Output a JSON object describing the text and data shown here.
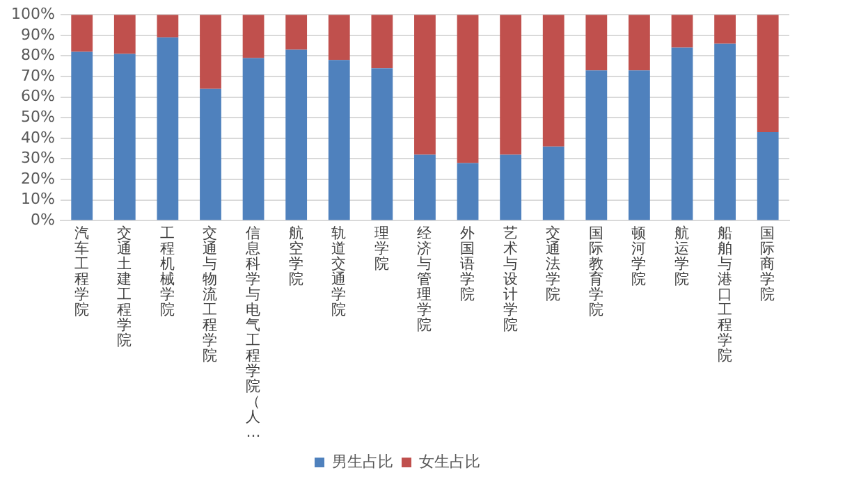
{
  "chart_data": {
    "type": "bar",
    "stacked": true,
    "categories": [
      "汽车工程学院",
      "交通土建工程学院",
      "工程机械学院",
      "交通与物流工程学院",
      "信息科学与电气工程学院（人…",
      "航空学院",
      "轨道交通学院",
      "理学院",
      "经济与管理学院",
      "外国语学院",
      "艺术与设计学院",
      "交通法学院",
      "国际教育学院",
      "顿河学院",
      "航运学院",
      "船舶与港口工程学院",
      "国际商学院"
    ],
    "series": [
      {
        "name": "男生占比",
        "color": "#4f81bd",
        "values": [
          82,
          81,
          89,
          64,
          79,
          83,
          78,
          74,
          32,
          28,
          32,
          36,
          73,
          73,
          84,
          86,
          43
        ]
      },
      {
        "name": "女生占比",
        "color": "#c0504d",
        "values": [
          18,
          19,
          11,
          36,
          21,
          17,
          22,
          26,
          68,
          72,
          68,
          64,
          27,
          27,
          16,
          14,
          57
        ]
      }
    ],
    "ylim": [
      0,
      100
    ],
    "yticks": [
      {
        "value": 0,
        "label": "0%"
      },
      {
        "value": 10,
        "label": "10%"
      },
      {
        "value": 20,
        "label": "20%"
      },
      {
        "value": 30,
        "label": "30%"
      },
      {
        "value": 40,
        "label": "40%"
      },
      {
        "value": 50,
        "label": "50%"
      },
      {
        "value": 60,
        "label": "60%"
      },
      {
        "value": 70,
        "label": "70%"
      },
      {
        "value": 80,
        "label": "80%"
      },
      {
        "value": 90,
        "label": "90%"
      },
      {
        "value": 100,
        "label": "100%"
      }
    ],
    "grid": "y",
    "legend": "bottom"
  }
}
